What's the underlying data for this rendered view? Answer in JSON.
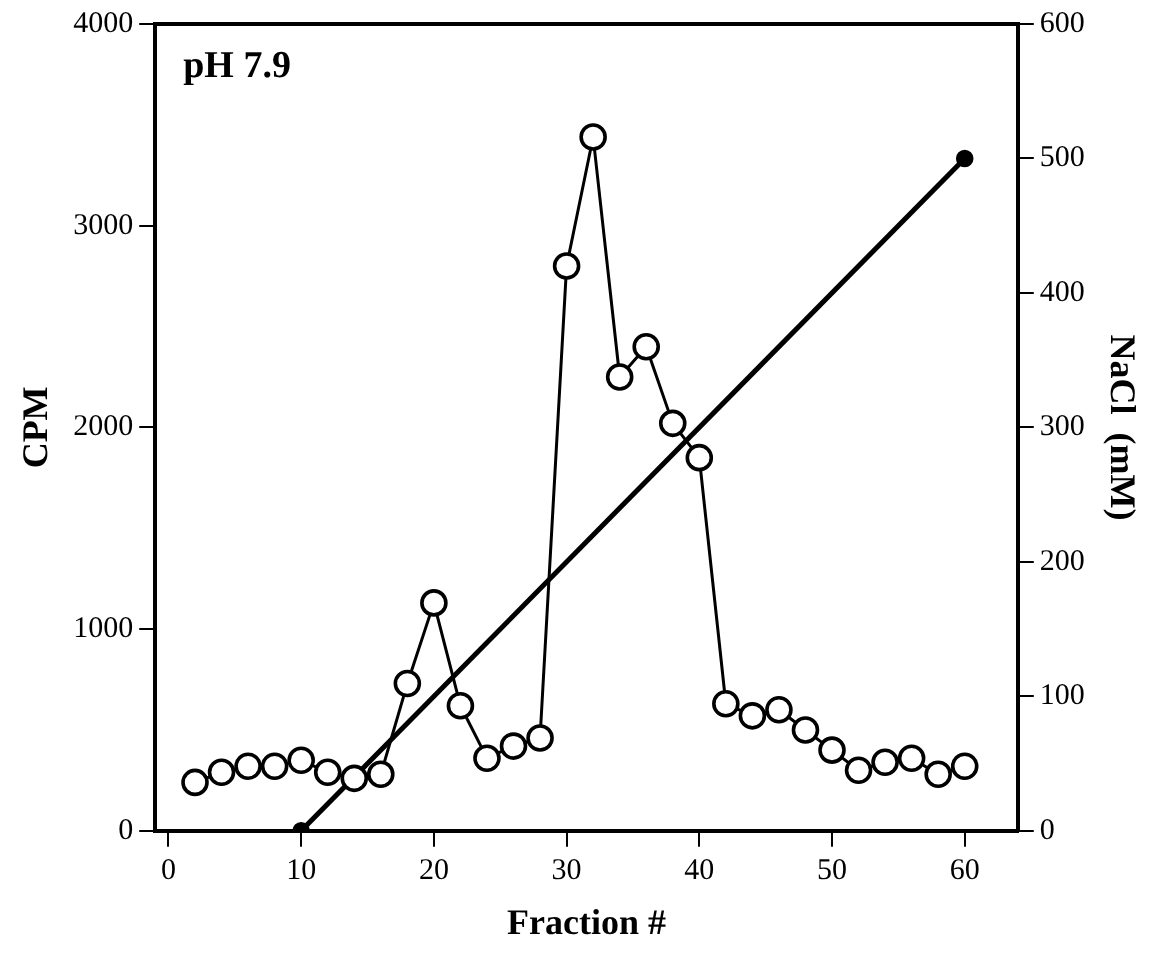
{
  "chart_data": {
    "type": "line",
    "title": "pH 7.9",
    "xlabel": "Fraction #",
    "ylabel": "CPM",
    "y2label": "NaCl  (mM)",
    "xlim": [
      -1,
      64
    ],
    "xticks": [
      0,
      10,
      20,
      30,
      40,
      50,
      60
    ],
    "ylim": [
      0,
      4000
    ],
    "yticks": [
      0,
      1000,
      2000,
      3000,
      4000
    ],
    "y2lim": [
      0,
      600
    ],
    "y2ticks": [
      0,
      100,
      200,
      300,
      400,
      500,
      600
    ],
    "grid": false,
    "legend": false,
    "line_style": "solid",
    "series": [
      {
        "color": "#000000",
        "marker": "circle",
        "x": [
          2,
          4,
          6,
          8,
          10,
          12,
          14,
          16,
          18,
          20,
          22,
          24,
          26,
          28,
          30,
          32,
          34,
          36,
          38,
          40,
          42,
          44,
          46,
          48,
          50,
          52,
          54,
          56,
          58,
          60
        ],
        "values": [
          240,
          290,
          320,
          320,
          350,
          290,
          260,
          280,
          730,
          1130,
          620,
          360,
          420,
          460,
          2800,
          3440,
          2250,
          2400,
          2020,
          1850,
          630,
          570,
          600,
          500,
          400,
          300,
          340,
          360,
          280,
          320
        ]
      },
      {
        "color": "#000000",
        "marker": "circle",
        "axis": "y2",
        "x": [
          10,
          60
        ],
        "values": [
          0,
          500
        ]
      }
    ]
  }
}
